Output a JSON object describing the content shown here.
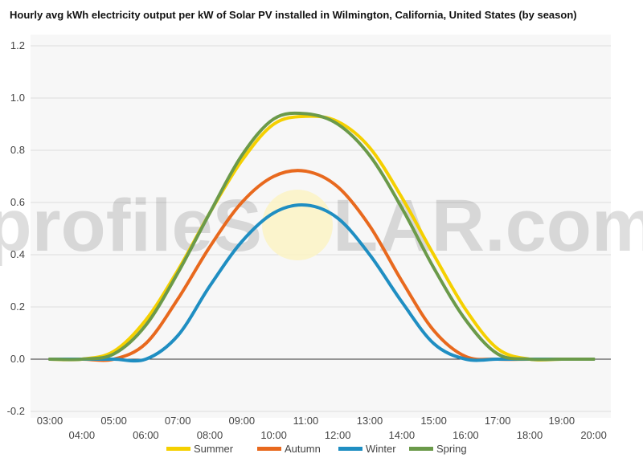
{
  "chart_data": {
    "type": "line",
    "title": "Hourly avg kWh electricity output per kW of Solar PV installed in Wilmington, California, United States (by season)",
    "xlabel": "",
    "ylabel": "",
    "x": [
      "03:00",
      "04:00",
      "05:00",
      "06:00",
      "07:00",
      "08:00",
      "09:00",
      "10:00",
      "11:00",
      "12:00",
      "13:00",
      "14:00",
      "15:00",
      "16:00",
      "17:00",
      "18:00",
      "19:00",
      "20:00"
    ],
    "ylim": [
      -0.2,
      1.2
    ],
    "yticks": [
      "-0.2",
      "0.0",
      "0.2",
      "0.4",
      "0.6",
      "0.8",
      "1.0",
      "1.2"
    ],
    "grid": true,
    "legend_position": "bottom",
    "series": [
      {
        "name": "Summer",
        "color": "#f5d000",
        "values": [
          0.0,
          0.0,
          0.03,
          0.15,
          0.34,
          0.56,
          0.76,
          0.9,
          0.93,
          0.91,
          0.81,
          0.62,
          0.4,
          0.19,
          0.04,
          0.0,
          0.0,
          0.0
        ]
      },
      {
        "name": "Autumn",
        "color": "#e8691e",
        "values": [
          0.0,
          0.0,
          0.0,
          0.06,
          0.23,
          0.43,
          0.6,
          0.7,
          0.72,
          0.66,
          0.51,
          0.3,
          0.11,
          0.01,
          0.0,
          0.0,
          0.0,
          0.0
        ]
      },
      {
        "name": "Winter",
        "color": "#1f8ec2",
        "values": [
          0.0,
          0.0,
          0.0,
          0.0,
          0.09,
          0.28,
          0.45,
          0.56,
          0.59,
          0.54,
          0.4,
          0.22,
          0.06,
          0.0,
          0.0,
          0.0,
          0.0,
          0.0
        ]
      },
      {
        "name": "Spring",
        "color": "#6b9a4a",
        "values": [
          0.0,
          0.0,
          0.02,
          0.13,
          0.33,
          0.56,
          0.78,
          0.92,
          0.94,
          0.9,
          0.78,
          0.58,
          0.35,
          0.15,
          0.02,
          0.0,
          0.0,
          0.0
        ]
      }
    ]
  },
  "watermark": {
    "left": "profileS",
    "right": "LAR.com"
  }
}
